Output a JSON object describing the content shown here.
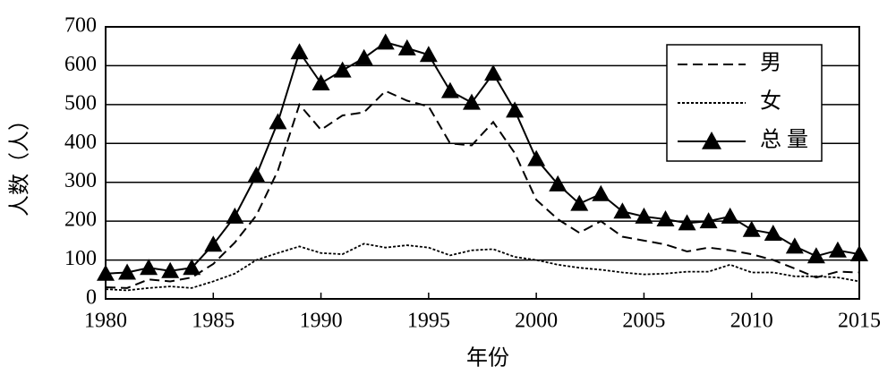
{
  "chart_data": {
    "type": "line",
    "xlabel": "年份",
    "ylabel": "人数（人）",
    "x": [
      1980,
      1981,
      1982,
      1983,
      1984,
      1985,
      1986,
      1987,
      1988,
      1989,
      1990,
      1991,
      1992,
      1993,
      1994,
      1995,
      1996,
      1997,
      1998,
      1999,
      2000,
      2001,
      2002,
      2003,
      2004,
      2005,
      2006,
      2007,
      2008,
      2009,
      2010,
      2011,
      2012,
      2013,
      2014,
      2015
    ],
    "series": [
      {
        "name": "男",
        "color": "#000000",
        "line_style": "dashed",
        "marker": "none",
        "values": [
          30,
          28,
          50,
          45,
          55,
          90,
          145,
          215,
          330,
          500,
          435,
          472,
          480,
          535,
          510,
          495,
          400,
          395,
          455,
          375,
          255,
          205,
          170,
          200,
          160,
          150,
          140,
          122,
          132,
          125,
          115,
          100,
          78,
          55,
          70,
          68
        ]
      },
      {
        "name": "女",
        "color": "#000000",
        "line_style": "dotted",
        "marker": "none",
        "values": [
          25,
          22,
          28,
          32,
          28,
          45,
          65,
          100,
          118,
          135,
          118,
          115,
          142,
          132,
          138,
          132,
          112,
          125,
          128,
          108,
          100,
          88,
          80,
          75,
          68,
          63,
          65,
          70,
          70,
          88,
          68,
          68,
          58,
          58,
          55,
          45
        ]
      },
      {
        "name": "总量",
        "color": "#000000",
        "line_style": "solid",
        "marker": "triangle",
        "values": [
          65,
          68,
          80,
          72,
          80,
          140,
          212,
          318,
          455,
          635,
          555,
          588,
          620,
          660,
          645,
          628,
          535,
          505,
          580,
          485,
          360,
          295,
          245,
          270,
          225,
          212,
          205,
          195,
          200,
          212,
          178,
          168,
          135,
          110,
          125,
          115
        ]
      }
    ],
    "xlim": [
      1980,
      2015
    ],
    "xticks": [
      1980,
      1985,
      1990,
      1995,
      2000,
      2005,
      2010,
      2015
    ],
    "ylim": [
      0,
      700
    ],
    "yticks": [
      0,
      100,
      200,
      300,
      400,
      500,
      600,
      700
    ],
    "grid": true,
    "legend": "upper right"
  }
}
